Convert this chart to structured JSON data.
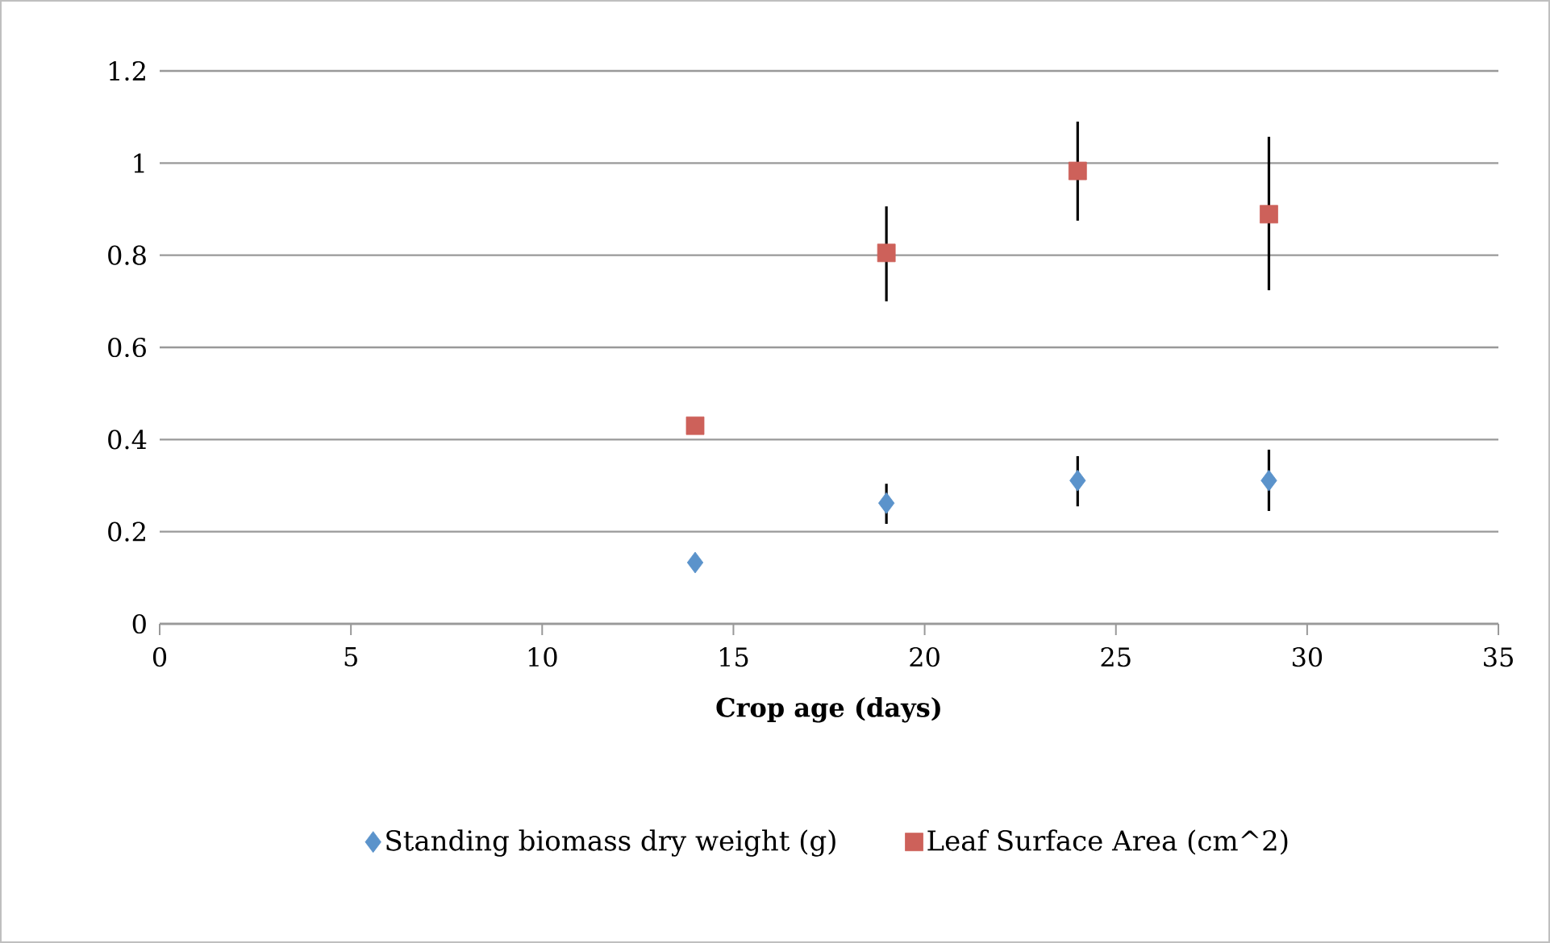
{
  "chart_data": {
    "type": "scatter",
    "xlabel": "Crop age (days)",
    "xlim": [
      0,
      35
    ],
    "xticks": [
      0,
      5,
      10,
      15,
      20,
      25,
      30,
      35
    ],
    "ylim": [
      0,
      1.2
    ],
    "yticks": [
      0,
      0.2,
      0.4,
      0.6,
      0.8,
      1,
      1.2
    ],
    "grid": "y",
    "legend": "bottom",
    "series": [
      {
        "name": "Standing biomass dry weight (g)",
        "color": "#5b93cb",
        "marker": "diamond",
        "x": [
          14,
          19,
          24,
          29
        ],
        "values": [
          0.133,
          0.262,
          0.311,
          0.311
        ],
        "errors": [
          null,
          [
            0.217,
            0.304
          ],
          [
            0.255,
            0.364
          ],
          [
            0.245,
            0.378
          ]
        ]
      },
      {
        "name": "Leaf Surface Area (cm^2)",
        "color": "#cd615a",
        "marker": "square",
        "x": [
          14,
          19,
          24,
          29
        ],
        "values": [
          0.43,
          0.805,
          0.983,
          0.889
        ],
        "errors": [
          null,
          [
            0.7,
            0.906
          ],
          [
            0.875,
            1.09
          ],
          [
            0.724,
            1.057
          ]
        ]
      }
    ]
  }
}
